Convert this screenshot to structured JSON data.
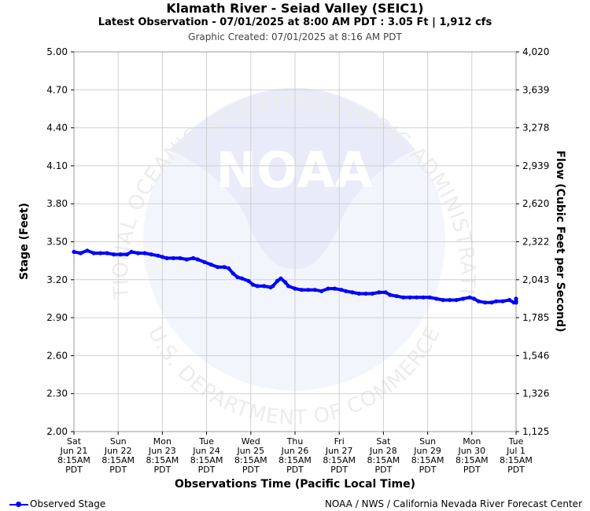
{
  "title": "Klamath River - Seiad Valley (SEIC1)",
  "subtitle": "Latest Observation - 07/01/2025 at 8:00 AM PDT : 3.05 Ft | 1,912 cfs",
  "created": "Graphic Created: 07/01/2025 at 8:16 AM PDT",
  "watermark": {
    "ring_top": "NATIONAL OCEANIC AND ATMOSPHERIC ADMINISTRATION",
    "ring_bottom": "U.S. DEPARTMENT OF COMMERCE",
    "logo": "NOAA"
  },
  "legend": {
    "label": "Observed Stage"
  },
  "credit": "NOAA / NWS / California Nevada River Forecast Center",
  "colors": {
    "series": "#0000ff",
    "grid": "#d0d0d0"
  },
  "chart_data": {
    "type": "line",
    "xlabel": "Observations Time (Pacific Local Time)",
    "ylabel": "Stage (Feet)",
    "y2label": "Flow (Cubic Feet per Second)",
    "ylim": [
      2.0,
      5.0
    ],
    "yticks": [
      "2.00",
      "2.30",
      "2.60",
      "2.90",
      "3.20",
      "3.50",
      "3.80",
      "4.10",
      "4.40",
      "4.70",
      "5.00"
    ],
    "y2ticks": [
      "1,125",
      "1,326",
      "1,546",
      "1,785",
      "2,043",
      "2,322",
      "2,620",
      "2,939",
      "3,278",
      "3,639",
      "4,020"
    ],
    "xlim_days": [
      0,
      10
    ],
    "xticks": [
      [
        "Sat",
        "Jun 21",
        "8:15AM",
        "PDT"
      ],
      [
        "Sun",
        "Jun 22",
        "8:15AM",
        "PDT"
      ],
      [
        "Mon",
        "Jun 23",
        "8:15AM",
        "PDT"
      ],
      [
        "Tue",
        "Jun 24",
        "8:15AM",
        "PDT"
      ],
      [
        "Wed",
        "Jun 25",
        "8:15AM",
        "PDT"
      ],
      [
        "Thu",
        "Jun 26",
        "8:15AM",
        "PDT"
      ],
      [
        "Fri",
        "Jun 27",
        "8:15AM",
        "PDT"
      ],
      [
        "Sat",
        "Jun 28",
        "8:15AM",
        "PDT"
      ],
      [
        "Sun",
        "Jun 29",
        "8:15AM",
        "PDT"
      ],
      [
        "Mon",
        "Jun 30",
        "8:15AM",
        "PDT"
      ],
      [
        "Tue",
        "Jul 1",
        "8:15AM",
        "PDT"
      ]
    ],
    "grid": true,
    "series": [
      {
        "name": "Observed Stage",
        "points": [
          [
            0.0,
            3.42
          ],
          [
            0.15,
            3.41
          ],
          [
            0.3,
            3.43
          ],
          [
            0.45,
            3.41
          ],
          [
            0.6,
            3.41
          ],
          [
            0.75,
            3.41
          ],
          [
            0.9,
            3.4
          ],
          [
            1.05,
            3.4
          ],
          [
            1.2,
            3.4
          ],
          [
            1.3,
            3.42
          ],
          [
            1.45,
            3.41
          ],
          [
            1.6,
            3.41
          ],
          [
            1.75,
            3.4
          ],
          [
            1.9,
            3.39
          ],
          [
            2.0,
            3.38
          ],
          [
            2.1,
            3.37
          ],
          [
            2.25,
            3.37
          ],
          [
            2.4,
            3.37
          ],
          [
            2.55,
            3.36
          ],
          [
            2.7,
            3.37
          ],
          [
            2.8,
            3.36
          ],
          [
            2.95,
            3.34
          ],
          [
            3.1,
            3.32
          ],
          [
            3.25,
            3.3
          ],
          [
            3.4,
            3.3
          ],
          [
            3.5,
            3.29
          ],
          [
            3.6,
            3.25
          ],
          [
            3.7,
            3.22
          ],
          [
            3.8,
            3.21
          ],
          [
            3.95,
            3.19
          ],
          [
            4.05,
            3.16
          ],
          [
            4.15,
            3.15
          ],
          [
            4.3,
            3.15
          ],
          [
            4.45,
            3.14
          ],
          [
            4.5,
            3.15
          ],
          [
            4.6,
            3.19
          ],
          [
            4.68,
            3.21
          ],
          [
            4.78,
            3.18
          ],
          [
            4.85,
            3.15
          ],
          [
            5.0,
            3.13
          ],
          [
            5.15,
            3.12
          ],
          [
            5.3,
            3.12
          ],
          [
            5.45,
            3.12
          ],
          [
            5.6,
            3.11
          ],
          [
            5.75,
            3.13
          ],
          [
            5.9,
            3.13
          ],
          [
            6.05,
            3.12
          ],
          [
            6.15,
            3.11
          ],
          [
            6.3,
            3.1
          ],
          [
            6.45,
            3.09
          ],
          [
            6.6,
            3.09
          ],
          [
            6.75,
            3.09
          ],
          [
            6.9,
            3.1
          ],
          [
            7.05,
            3.1
          ],
          [
            7.15,
            3.08
          ],
          [
            7.3,
            3.07
          ],
          [
            7.45,
            3.06
          ],
          [
            7.6,
            3.06
          ],
          [
            7.75,
            3.06
          ],
          [
            7.9,
            3.06
          ],
          [
            8.05,
            3.06
          ],
          [
            8.2,
            3.05
          ],
          [
            8.35,
            3.04
          ],
          [
            8.5,
            3.04
          ],
          [
            8.65,
            3.04
          ],
          [
            8.8,
            3.05
          ],
          [
            8.95,
            3.06
          ],
          [
            9.05,
            3.05
          ],
          [
            9.15,
            3.03
          ],
          [
            9.3,
            3.02
          ],
          [
            9.45,
            3.02
          ],
          [
            9.55,
            3.03
          ],
          [
            9.7,
            3.03
          ],
          [
            9.85,
            3.04
          ],
          [
            9.95,
            3.02
          ],
          [
            10.1,
            3.02
          ],
          [
            10.25,
            3.02
          ],
          [
            10.3,
            3.03
          ],
          [
            10.4,
            3.05
          ]
        ]
      }
    ]
  }
}
